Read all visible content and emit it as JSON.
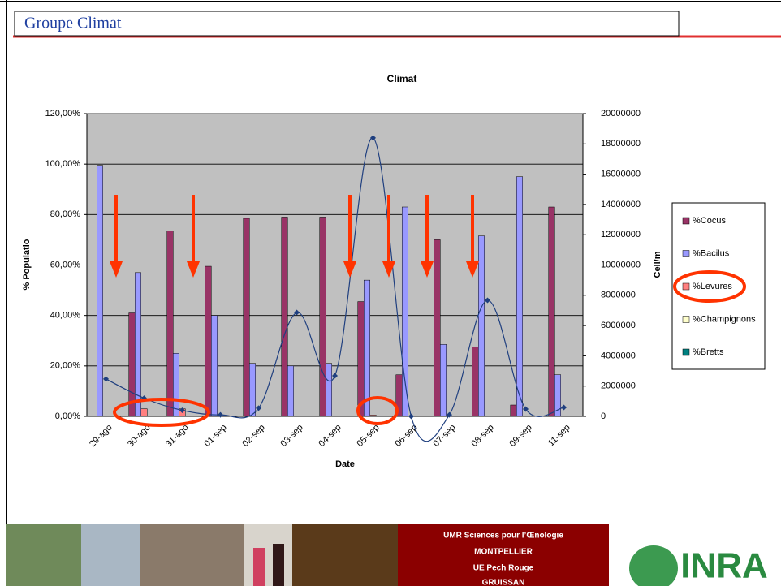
{
  "header": {
    "title": "Groupe Climat"
  },
  "footer": {
    "lines": [
      "UMR Sciences pour l’Œnologie",
      "MONTPELLIER",
      "UE Pech Rouge",
      "GRUISSAN"
    ],
    "logo": "INRA"
  },
  "chart_data": {
    "type": "bar",
    "title": "Climat",
    "x_label": "Date",
    "y_label": "% Populatio",
    "y2_label": "Cell/m",
    "categories": [
      "29-ago",
      "30-ago",
      "31-ago",
      "01-sep",
      "02-sep",
      "03-sep",
      "04-sep",
      "05-sep",
      "06-sep",
      "07-sep",
      "08-sep",
      "09-sep",
      "11-sep"
    ],
    "series": [
      {
        "name": "%Cocus",
        "color": "#993366",
        "values": [
          0,
          41,
          73.5,
          59.5,
          78.5,
          79,
          79,
          45.5,
          16.5,
          70,
          27.5,
          4.5,
          83
        ]
      },
      {
        "name": "%Bacilus",
        "color": "#9999ff",
        "values": [
          99.5,
          57,
          25,
          40,
          21,
          20,
          21,
          54,
          83,
          28.5,
          71.5,
          95,
          16.5
        ]
      },
      {
        "name": "%Levures",
        "color": "#ff8080",
        "values": [
          0,
          3,
          3,
          0,
          0,
          0,
          0,
          0.5,
          0,
          0,
          0,
          0,
          0
        ]
      },
      {
        "name": "%Champignons",
        "color": "#ffffcc",
        "values": [
          0,
          0,
          0,
          0,
          0,
          0,
          0,
          0,
          0,
          0,
          0,
          0,
          0
        ]
      },
      {
        "name": "%Bretts",
        "color": "#008080",
        "values": [
          0,
          0,
          0,
          0,
          0,
          0,
          0,
          0,
          0,
          0,
          0,
          0,
          0
        ]
      }
    ],
    "line": {
      "type": "line",
      "axis": "y2",
      "color": "#1f3f7f",
      "values": [
        2470000,
        1200000,
        400000,
        100000,
        540000,
        6860000,
        2680000,
        18400000,
        0,
        100000,
        7670000,
        480000,
        590000
      ]
    },
    "ylim": [
      0,
      120
    ],
    "yticks": [
      {
        "value": 0,
        "label": "0,00%"
      },
      {
        "value": 20,
        "label": "20,00%"
      },
      {
        "value": 40,
        "label": "40,00%"
      },
      {
        "value": 60,
        "label": "60,00%"
      },
      {
        "value": 80,
        "label": "80,00%"
      },
      {
        "value": 100,
        "label": "100,00%"
      },
      {
        "value": 120,
        "label": "120,00%"
      }
    ],
    "y2lim": [
      0,
      20000000
    ],
    "y2ticks": [
      0,
      2000000,
      4000000,
      6000000,
      8000000,
      10000000,
      12000000,
      14000000,
      16000000,
      18000000,
      20000000
    ],
    "grid": true,
    "legend": "right"
  }
}
